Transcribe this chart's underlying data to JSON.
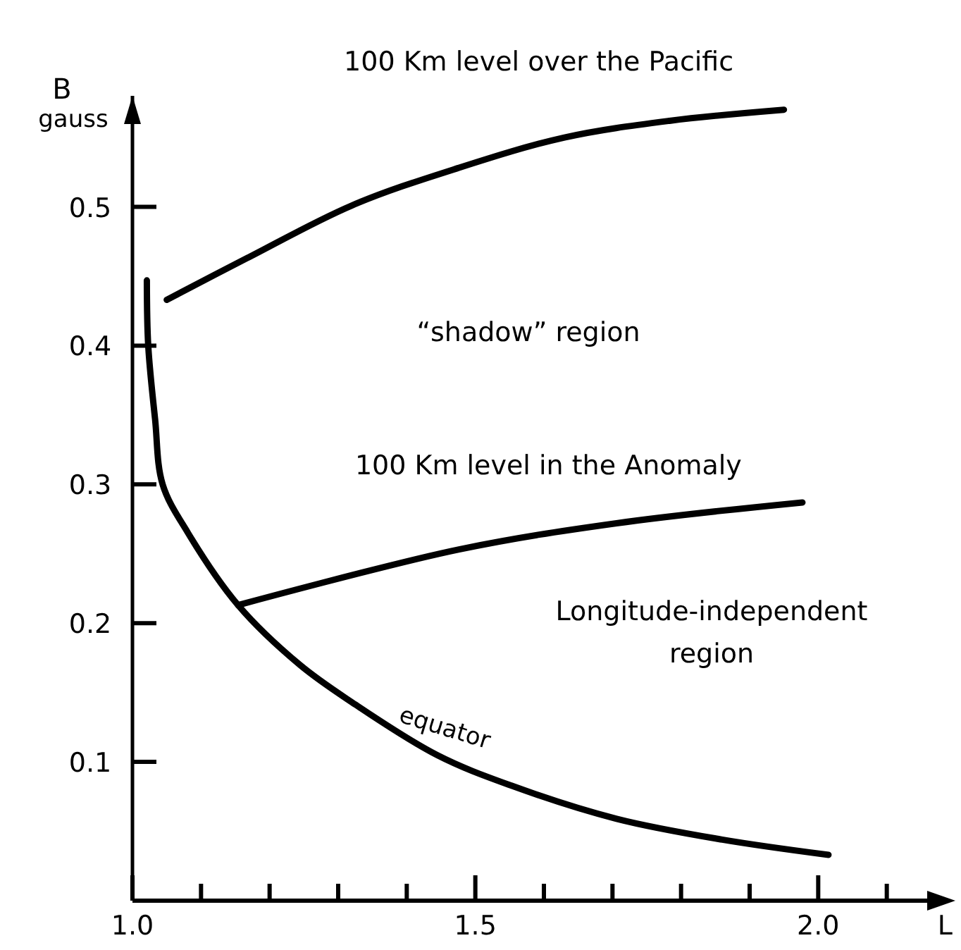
{
  "chart_data": {
    "type": "line",
    "xlabel": "L",
    "ylabel": "B gauss",
    "xlim": [
      1.0,
      2.2
    ],
    "ylim": [
      0,
      0.58
    ],
    "xticks": [
      {
        "value": 1.0,
        "label": "1.0"
      },
      {
        "value": 1.1,
        "label": null
      },
      {
        "value": 1.2,
        "label": null
      },
      {
        "value": 1.3,
        "label": null
      },
      {
        "value": 1.4,
        "label": null
      },
      1.5,
      {
        "value": 1.6,
        "label": null
      },
      {
        "value": 1.7,
        "label": null
      },
      {
        "value": 1.8,
        "label": null
      },
      {
        "value": 1.9,
        "label": null
      },
      {
        "value": 2.0,
        "label": "2.0"
      },
      {
        "value": 2.1,
        "label": null
      }
    ],
    "yticks": [
      0.1,
      0.2,
      0.3,
      0.4,
      0.5
    ],
    "marker": "none",
    "line_style": "solid",
    "grid": false,
    "legend": false,
    "series": [
      {
        "name": "100 Km level over the Pacific",
        "color": "#000000",
        "x": [
          1.05,
          1.167,
          1.32,
          1.475,
          1.63,
          1.783,
          1.95
        ],
        "values": [
          0.433,
          0.463,
          0.501,
          0.528,
          0.55,
          0.562,
          0.57
        ]
      },
      {
        "name": "100 Km level in the Anomaly",
        "color": "#000000",
        "x": [
          1.154,
          1.475,
          1.706,
          1.977
        ],
        "values": [
          0.213,
          0.253,
          0.272,
          0.287
        ]
      },
      {
        "name": "equator",
        "color": "#000000",
        "x": [
          1.021,
          1.023,
          1.033,
          1.044,
          1.081,
          1.154,
          1.244,
          1.32,
          1.444,
          1.552,
          1.706,
          1.86,
          2.015
        ],
        "values": [
          0.447,
          0.4,
          0.347,
          0.3,
          0.265,
          0.213,
          0.17,
          0.143,
          0.105,
          0.083,
          0.059,
          0.044,
          0.033
        ]
      }
    ],
    "annotations": [
      "“shadow” region",
      "Longitude-independent region"
    ]
  }
}
